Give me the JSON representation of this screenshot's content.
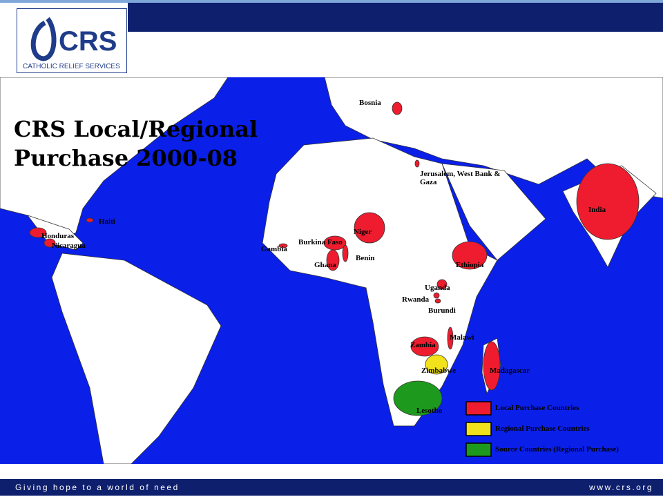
{
  "header": {
    "logo_mark": "CRS",
    "logo_text": "CATHOLIC RELIEF SERVICES"
  },
  "map": {
    "title_lines": [
      "CRS Local/Regional",
      "Purchase 2000-08"
    ],
    "legend": [
      {
        "label": "Local Purchase Countries",
        "color": "#ee1c2e",
        "countries": [
          "Bosnia",
          "Haiti",
          "Honduras",
          "Nicaragua",
          "Gambia",
          "Burkina Faso",
          "Niger",
          "Ghana",
          "Benin",
          "Jerusalem, West Bank & Gaza",
          "Ethiopia",
          "Uganda",
          "Rwanda",
          "Burundi",
          "Zambia",
          "Malawi",
          "Madagascar",
          "India"
        ]
      },
      {
        "label": "Regional Purchase Countries",
        "color": "#f2e21c",
        "countries": [
          "Zimbabwe"
        ]
      },
      {
        "label": "Source Countries (Regional Purchase)",
        "color": "#1d9a1d",
        "countries": [
          "Lesotho"
        ]
      }
    ]
  },
  "footer": {
    "tagline": "Giving hope to a world of need",
    "url": "www.crs.org"
  }
}
